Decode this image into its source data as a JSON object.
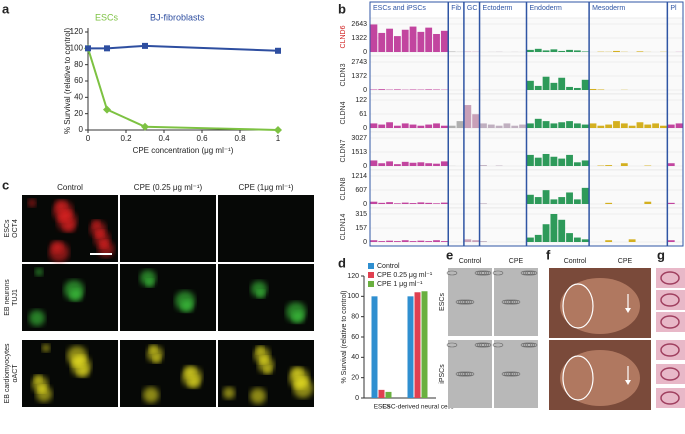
{
  "panel_labels": [
    "a",
    "b",
    "c",
    "d",
    "e",
    "f",
    "g"
  ],
  "chart_data": [
    {
      "type": "line",
      "x_label": "CPE concentration (μg ml⁻¹)",
      "y_label": "% Survival (relative to control)",
      "xlim": [
        0,
        1
      ],
      "xticks": [
        0,
        0.2,
        0.4,
        0.6,
        0.8,
        1
      ],
      "ylim": [
        0,
        120
      ],
      "yticks": [
        0,
        20,
        40,
        60,
        80,
        100,
        120
      ],
      "series": [
        {
          "name": "ESCs",
          "color": "#7dc242",
          "marker": "diamond",
          "x": [
            0,
            0.1,
            0.3,
            1
          ],
          "values": [
            100,
            25,
            4,
            0
          ]
        },
        {
          "name": "BJ-fibroblasts",
          "color": "#2e4ea0",
          "marker": "square",
          "x": [
            0,
            0.1,
            0.3,
            1
          ],
          "values": [
            100,
            100,
            103,
            97
          ]
        }
      ]
    },
    {
      "type": "tracks",
      "groups": [
        {
          "name": "ESCs and iPSCs",
          "color": "#c2459f"
        },
        {
          "name": "Fib",
          "color": "#b0b0b0"
        },
        {
          "name": "GC",
          "color": "#c8a0b8"
        },
        {
          "name": "Ectoderm",
          "color": "#c0b0c0"
        },
        {
          "name": "Endoderm",
          "color": "#2e9a5a"
        },
        {
          "name": "Mesoderm",
          "color": "#d4b020"
        },
        {
          "name": "Pl",
          "color": "#c2459f"
        }
      ],
      "tracks": [
        {
          "name": "CLND6",
          "label_color": "#d02020",
          "ylim": [
            0,
            2643
          ],
          "yticks": [
            0,
            1322,
            2643
          ],
          "values": [
            2600,
            1800,
            2200,
            1500,
            2100,
            2400,
            1900,
            2300,
            1700,
            2000,
            50,
            20,
            40,
            30,
            0,
            10,
            20,
            0,
            10,
            0,
            200,
            300,
            150,
            250,
            100,
            200,
            150,
            50,
            0,
            30,
            20,
            100,
            20,
            0,
            60,
            10,
            0,
            20,
            0,
            10
          ]
        },
        {
          "name": "CLDN3",
          "label_color": "#333333",
          "ylim": [
            0,
            2743
          ],
          "yticks": [
            0,
            1372,
            2743
          ],
          "values": [
            50,
            80,
            40,
            60,
            30,
            50,
            40,
            60,
            50,
            30,
            0,
            0,
            0,
            20,
            0,
            0,
            0,
            0,
            0,
            0,
            900,
            400,
            1300,
            700,
            1200,
            300,
            200,
            1000,
            100,
            50,
            0,
            0,
            20,
            0,
            0,
            0,
            0,
            0,
            0,
            0
          ]
        },
        {
          "name": "CLDN4",
          "label_color": "#333333",
          "ylim": [
            0,
            122
          ],
          "yticks": [
            0,
            61,
            122
          ],
          "values": [
            20,
            15,
            25,
            10,
            20,
            15,
            10,
            15,
            20,
            10,
            10,
            30,
            100,
            60,
            20,
            15,
            10,
            20,
            10,
            15,
            20,
            40,
            30,
            20,
            25,
            30,
            20,
            15,
            20,
            10,
            15,
            30,
            20,
            10,
            25,
            15,
            20,
            10,
            15,
            20
          ]
        },
        {
          "name": "CLDN7",
          "label_color": "#333333",
          "ylim": [
            0,
            3027
          ],
          "yticks": [
            0,
            1513,
            3027
          ],
          "values": [
            600,
            300,
            500,
            200,
            450,
            350,
            400,
            300,
            250,
            500,
            10,
            0,
            0,
            0,
            100,
            0,
            50,
            0,
            0,
            0,
            1200,
            900,
            1300,
            1000,
            800,
            1200,
            400,
            600,
            0,
            50,
            100,
            0,
            300,
            0,
            0,
            50,
            0,
            0,
            300,
            0
          ]
        },
        {
          "name": "CLDN8",
          "label_color": "#333333",
          "ylim": [
            0,
            1214
          ],
          "yticks": [
            0,
            607,
            1214
          ],
          "values": [
            100,
            50,
            80,
            30,
            60,
            40,
            70,
            50,
            30,
            60,
            0,
            0,
            0,
            0,
            30,
            0,
            0,
            0,
            0,
            0,
            400,
            300,
            600,
            200,
            300,
            500,
            200,
            700,
            0,
            0,
            50,
            0,
            0,
            0,
            0,
            100,
            0,
            0,
            50,
            0
          ]
        },
        {
          "name": "CLDN14",
          "label_color": "#333333",
          "ylim": [
            0,
            315
          ],
          "yticks": [
            0,
            157,
            315
          ],
          "values": [
            20,
            10,
            15,
            10,
            20,
            10,
            15,
            10,
            20,
            10,
            0,
            0,
            30,
            20,
            10,
            0,
            0,
            0,
            0,
            0,
            50,
            80,
            200,
            315,
            250,
            100,
            50,
            30,
            0,
            0,
            20,
            0,
            0,
            30,
            0,
            0,
            0,
            0,
            20,
            0
          ]
        }
      ]
    },
    {
      "type": "bar",
      "y_label": "% Survival (relative to control)",
      "categories": [
        "ESCs",
        "ESC-derived neural cells"
      ],
      "ylim": [
        0,
        120
      ],
      "yticks": [
        0,
        20,
        40,
        60,
        80,
        100,
        120
      ],
      "series": [
        {
          "name": "Control",
          "color": "#2f8fd0",
          "values": [
            100,
            100
          ]
        },
        {
          "name": "CPE 0.25 μg ml⁻¹",
          "color": "#e04050",
          "values": [
            8,
            104
          ]
        },
        {
          "name": "CPE 1 μg ml⁻¹",
          "color": "#6ab040",
          "values": [
            6,
            105
          ]
        }
      ]
    }
  ],
  "images": {
    "c": {
      "columns": [
        "Control",
        "CPE (0.25 μg ml⁻¹)",
        "CPE (1μg ml⁻¹)"
      ],
      "rows": [
        [
          "ESCs",
          "OCT4"
        ],
        [
          "EB neurons",
          "TUJ1"
        ],
        [
          "EB cardiomyocytes",
          "αACT"
        ]
      ]
    },
    "e": {
      "columns": [
        "Control",
        "CPE"
      ],
      "rows": [
        "ESCs",
        "iPSCs"
      ]
    },
    "f": {
      "columns": [
        "Control",
        "CPE"
      ]
    }
  }
}
